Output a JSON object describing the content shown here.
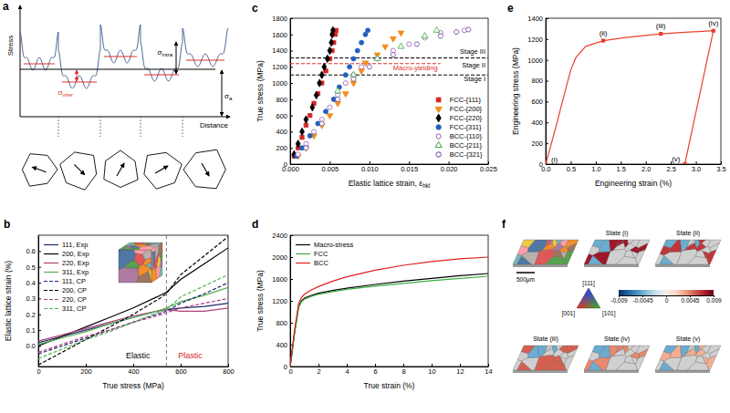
{
  "chart_data": [
    {
      "panel": "b",
      "type": "line",
      "x_label": "True stress (MPa)",
      "y_label": "Elastic lattice strain (%)",
      "x": [
        0,
        100,
        200,
        300,
        400,
        500,
        540,
        600,
        700,
        800
      ],
      "series": [
        {
          "name": "111, Exp",
          "color": "#1c2a6e",
          "line_style": "solid",
          "values": [
            0.02,
            0.06,
            0.1,
            0.14,
            0.18,
            0.22,
            0.23,
            0.24,
            0.25,
            0.27
          ]
        },
        {
          "name": "200, Exp",
          "color": "#000000",
          "line_style": "solid",
          "values": [
            0,
            0.06,
            0.12,
            0.18,
            0.24,
            0.31,
            0.34,
            0.42,
            0.52,
            0.62
          ]
        },
        {
          "name": "220, Exp",
          "color": "#b0407e",
          "line_style": "solid",
          "values": [
            0.03,
            0.07,
            0.11,
            0.15,
            0.19,
            0.22,
            0.23,
            0.22,
            0.22,
            0.24
          ]
        },
        {
          "name": "311, Exp",
          "color": "#55b050",
          "line_style": "solid",
          "values": [
            0.01,
            0.05,
            0.09,
            0.14,
            0.18,
            0.22,
            0.24,
            0.28,
            0.32,
            0.37
          ]
        },
        {
          "name": "111, CP",
          "color": "#1c2a6e",
          "line_style": "dashed",
          "values": [
            -0.05,
            0,
            0.05,
            0.1,
            0.15,
            0.2,
            0.22,
            0.27,
            0.33,
            0.4
          ]
        },
        {
          "name": "200, CP",
          "color": "#000000",
          "line_style": "dashed",
          "values": [
            -0.12,
            -0.04,
            0.04,
            0.12,
            0.2,
            0.29,
            0.33,
            0.45,
            0.57,
            0.69
          ]
        },
        {
          "name": "220, CP",
          "color": "#b0407e",
          "line_style": "dashed",
          "values": [
            -0.04,
            0.01,
            0.06,
            0.1,
            0.15,
            0.19,
            0.21,
            0.24,
            0.27,
            0.3
          ]
        },
        {
          "name": "311, CP",
          "color": "#55b050",
          "line_style": "dashed",
          "values": [
            -0.08,
            -0.02,
            0.04,
            0.09,
            0.15,
            0.21,
            0.23,
            0.31,
            0.38,
            0.45
          ]
        }
      ],
      "xlim": [
        0,
        800
      ],
      "xticks": [
        0,
        200,
        400,
        600,
        800
      ],
      "ylim": [
        -0.13,
        0.7
      ],
      "yticks": [
        {
          "value": 0,
          "label": "0.0"
        },
        0.1,
        0.2,
        0.3,
        0.4,
        0.5,
        0.6
      ],
      "legend": "upper left",
      "divider_x": 540,
      "annotations": [
        {
          "text": "Elastic",
          "x": 420,
          "y": -0.08
        },
        {
          "text": "Plastic",
          "x": 640,
          "y": -0.08,
          "color": "#d62728"
        }
      ]
    },
    {
      "panel": "c",
      "type": "scatter",
      "x_label": "Elastic lattice strain, ε",
      "x_label_sub": "hkl",
      "y_label": "True stress (MPa)",
      "series": [
        {
          "name": "FCC-{111}",
          "color": "#d62728",
          "marker": "square",
          "x": [
            0.0005,
            0.001,
            0.0015,
            0.002,
            0.0025,
            0.003,
            0.0035,
            0.004,
            0.0045,
            0.005,
            0.0053,
            0.0055,
            0.0057,
            0.0058
          ],
          "values": [
            100,
            200,
            330,
            480,
            600,
            750,
            870,
            1000,
            1150,
            1300,
            1400,
            1500,
            1600,
            1650
          ]
        },
        {
          "name": "FCC-{200}",
          "color": "#f28e1c",
          "marker": "triangle-down",
          "x": [
            0.001,
            0.002,
            0.003,
            0.004,
            0.005,
            0.006,
            0.007,
            0.008,
            0.009,
            0.0095,
            0.011,
            0.012,
            0.013,
            0.014
          ],
          "values": [
            100,
            200,
            350,
            480,
            600,
            750,
            870,
            1000,
            1150,
            1250,
            1350,
            1450,
            1550,
            1620
          ]
        },
        {
          "name": "FCC-{220}",
          "color": "#000000",
          "marker": "diamond",
          "x": [
            0.0005,
            0.001,
            0.0015,
            0.002,
            0.0028,
            0.0033,
            0.0037,
            0.004,
            0.0043,
            0.0047,
            0.005,
            0.0052,
            0.0053,
            0.0054
          ],
          "values": [
            120,
            250,
            400,
            550,
            700,
            850,
            1000,
            1100,
            1200,
            1300,
            1400,
            1500,
            1600,
            1650
          ]
        },
        {
          "name": "FCC-{311}",
          "color": "#1f5fbf",
          "marker": "circle",
          "x": [
            0.0008,
            0.0015,
            0.0025,
            0.0035,
            0.0045,
            0.0055,
            0.0062,
            0.007,
            0.0075,
            0.008,
            0.0085,
            0.009,
            0.0095,
            0.0098
          ],
          "values": [
            100,
            200,
            350,
            500,
            650,
            800,
            950,
            1100,
            1200,
            1300,
            1400,
            1500,
            1600,
            1650
          ]
        },
        {
          "name": "BCC-{110}",
          "color": "#9b59b6",
          "marker": "circle-open",
          "x": [
            0.001,
            0.002,
            0.003,
            0.004,
            0.005,
            0.006,
            0.007,
            0.008,
            0.009,
            0.011,
            0.013,
            0.015,
            0.017,
            0.019,
            0.022
          ],
          "values": [
            120,
            250,
            400,
            550,
            700,
            850,
            1000,
            1100,
            1200,
            1300,
            1400,
            1480,
            1560,
            1620,
            1650
          ]
        },
        {
          "name": "BCC-{211}",
          "color": "#3aa63a",
          "marker": "triangle-open",
          "x": [
            0.006,
            0.008,
            0.011,
            0.014,
            0.017,
            0.0185
          ],
          "values": [
            900,
            1100,
            1300,
            1450,
            1580,
            1650
          ]
        },
        {
          "name": "BCC-{321}",
          "color": "#6a3d9a",
          "marker": "hexagon-open",
          "x": [
            0.002,
            0.004,
            0.006,
            0.008,
            0.01,
            0.013,
            0.016,
            0.019,
            0.021,
            0.0225
          ],
          "values": [
            200,
            500,
            800,
            1050,
            1200,
            1350,
            1480,
            1580,
            1630,
            1660
          ]
        }
      ],
      "xlim": [
        0,
        0.025
      ],
      "xticks": [
        {
          "value": 0,
          "label": "0.000"
        },
        0.005,
        {
          "value": 0.01,
          "label": "0.010"
        },
        0.015,
        {
          "value": 0.02,
          "label": "0.020"
        },
        0.025
      ],
      "ylim": [
        0,
        1800
      ],
      "yticks": [
        0,
        200,
        400,
        600,
        800,
        1000,
        1200,
        1400,
        1600,
        1800
      ],
      "legend": "lower right",
      "reference_lines": [
        {
          "y": 1100,
          "color": "#000000"
        },
        {
          "y": 1310,
          "color": "#000000"
        },
        {
          "y": 1240,
          "x_end": 0.019,
          "color": "#e0302a"
        }
      ],
      "annotations": [
        {
          "text": "Stage III",
          "y": 1360
        },
        {
          "text": "Stage II",
          "y": 1190
        },
        {
          "text": "Stage I",
          "y": 1020
        },
        {
          "text": "Macro-yielding",
          "x": 0.013,
          "y": 1160,
          "color": "#e0302a"
        }
      ]
    },
    {
      "panel": "d",
      "type": "line",
      "x_label": "True strain (%)",
      "y_label": "True stress (MPa)",
      "x": [
        0,
        0.3,
        0.6,
        0.8,
        1,
        1.5,
        2,
        3,
        4,
        6,
        8,
        10,
        12,
        14
      ],
      "series": [
        {
          "name": "Macro-stress",
          "color": "#000000",
          "values": [
            0,
            600,
            1100,
            1200,
            1250,
            1300,
            1340,
            1390,
            1430,
            1500,
            1560,
            1610,
            1660,
            1700
          ]
        },
        {
          "name": "FCC",
          "color": "#3cb043",
          "values": [
            0,
            580,
            1080,
            1180,
            1230,
            1280,
            1320,
            1370,
            1410,
            1470,
            1520,
            1570,
            1610,
            1650
          ]
        },
        {
          "name": "BCC",
          "color": "#e02020",
          "values": [
            0,
            650,
            1150,
            1260,
            1320,
            1400,
            1460,
            1560,
            1640,
            1760,
            1850,
            1920,
            1970,
            2000
          ]
        }
      ],
      "xlim": [
        0,
        14
      ],
      "xticks": [
        0,
        2,
        4,
        6,
        8,
        10,
        12,
        14
      ],
      "ylim": [
        0,
        2400
      ],
      "yticks": [
        0,
        400,
        800,
        1200,
        1600,
        2000,
        2400
      ],
      "legend": "upper left"
    },
    {
      "panel": "e",
      "type": "line",
      "x_label": "Engineering strain (%)",
      "y_label": "Engineering stress (MPa)",
      "x": [
        0,
        0.2,
        0.4,
        0.5,
        0.6,
        0.8,
        1.15,
        1.6,
        2.3,
        2.8,
        3.35,
        2.78
      ],
      "series": [
        {
          "color": "#e8412c",
          "values": [
            0,
            350,
            720,
            900,
            1020,
            1130,
            1185,
            1215,
            1250,
            1265,
            1280,
            0
          ]
        }
      ],
      "points": {
        "x": [
          0,
          1.15,
          2.3,
          3.35,
          2.78
        ],
        "values": [
          0,
          1185,
          1250,
          1280,
          0
        ],
        "labels": [
          "(i)",
          "(ii)",
          "(iii)",
          "(iv)",
          "(v)"
        ],
        "marker": "square",
        "color": "#e8412c"
      },
      "xlim": [
        0,
        3.5
      ],
      "xticks": [
        {
          "value": 0,
          "label": "0.0"
        },
        0.5,
        {
          "value": 1,
          "label": "1.0"
        },
        1.5,
        {
          "value": 2,
          "label": "2.0"
        },
        2.5,
        {
          "value": 3,
          "label": "3.0"
        },
        3.5
      ],
      "ylim": [
        0,
        1400
      ],
      "yticks": [
        0,
        200,
        400,
        600,
        800,
        1000,
        1200,
        1400
      ]
    }
  ],
  "diagram_a": {
    "panel": "a",
    "y_label": "Stress",
    "x_label": "Distance",
    "sigma_inter": {
      "base": "σ",
      "sub": "inter"
    },
    "sigma_intra": {
      "base": "σ",
      "sub": "intra"
    },
    "sigma_a": {
      "base": "σ",
      "sub": "a"
    }
  },
  "image_f": {
    "panel": "f",
    "scale_bar": "500μm",
    "states": [
      "State (i)",
      "State (ii)",
      "State (iii)",
      "State (iv)",
      "State (v)"
    ],
    "ipf_labels": [
      "[111]",
      "[001]",
      "[101]"
    ],
    "colorbar": {
      "range": [
        -0.009,
        0.009
      ],
      "ticks": [
        -0.009,
        -0.0045,
        0,
        0.0045,
        0.009
      ]
    }
  }
}
